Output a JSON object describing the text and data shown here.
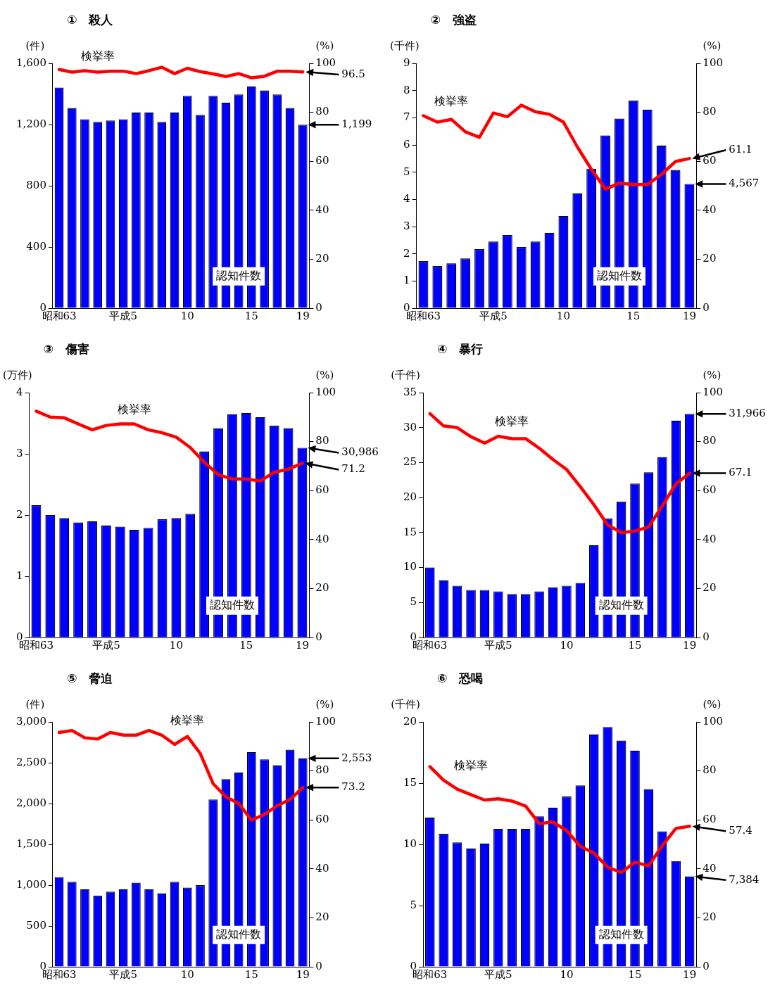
{
  "chart_data": [
    {
      "type": "bar",
      "title": "①　殺人",
      "ylabel": "(件)",
      "y2label": "(%)",
      "legend": false,
      "grid": false,
      "categories": [
        "昭和63",
        null,
        null,
        null,
        null,
        "平成5",
        null,
        null,
        null,
        null,
        "10",
        null,
        null,
        null,
        null,
        "15",
        null,
        null,
        null,
        "19"
      ],
      "ylim": [
        0,
        1600
      ],
      "yticks": [
        0,
        400,
        800,
        {
          "value": 1200,
          "label": "1,200"
        },
        {
          "value": 1600,
          "label": "1,600"
        }
      ],
      "y2lim": [
        0,
        100
      ],
      "y2ticks": [
        0,
        20,
        40,
        60,
        80,
        100
      ],
      "series": [
        {
          "name": "認知件数",
          "color": "#0000ff",
          "values": [
            1441,
            1308,
            1235,
            1217,
            1226,
            1235,
            1279,
            1279,
            1217,
            1279,
            1387,
            1263,
            1387,
            1343,
            1396,
            1449,
            1423,
            1396,
            1308,
            1199
          ]
        },
        {
          "name": "検挙率",
          "type": "line",
          "axis": "y2",
          "color": "#ff0000",
          "values": [
            97.5,
            96.4,
            97,
            96.4,
            96.8,
            96.8,
            95.8,
            97,
            98.4,
            95.8,
            98,
            96.6,
            95.7,
            94.6,
            95.8,
            94.1,
            94.7,
            96.8,
            96.8,
            96.5
          ]
        }
      ],
      "annotations": [
        "1,199",
        "96.5"
      ]
    },
    {
      "type": "bar",
      "title": "②　強盗",
      "ylabel": "(千件)",
      "y2label": "(%)",
      "legend": false,
      "grid": false,
      "categories": [
        "昭和63",
        null,
        null,
        null,
        null,
        "平成5",
        null,
        null,
        null,
        null,
        "10",
        null,
        null,
        null,
        null,
        "15",
        null,
        null,
        null,
        "19"
      ],
      "ylim": [
        0,
        9
      ],
      "yticks": [
        0,
        1,
        2,
        3,
        4,
        5,
        6,
        7,
        8,
        9
      ],
      "y2lim": [
        0,
        100
      ],
      "y2ticks": [
        0,
        20,
        40,
        60,
        80,
        100
      ],
      "series": [
        {
          "name": "認知件数",
          "color": "#0000ff",
          "values": [
            1.73,
            1.55,
            1.65,
            1.83,
            2.17,
            2.45,
            2.69,
            2.25,
            2.45,
            2.77,
            3.39,
            4.23,
            5.13,
            6.35,
            6.97,
            7.63,
            7.3,
            5.98,
            5.08,
            4.567
          ]
        },
        {
          "name": "検挙率",
          "type": "line",
          "axis": "y2",
          "color": "#ff0000",
          "values": [
            78.6,
            76,
            77.1,
            72,
            69.8,
            79.7,
            78.2,
            82.9,
            80.2,
            79.2,
            76,
            65.8,
            56.7,
            48.6,
            51.1,
            50.5,
            50.5,
            54.6,
            59.9,
            61.1
          ]
        }
      ],
      "annotations": [
        "4,567",
        "61.1"
      ]
    },
    {
      "type": "bar",
      "title": "③　傷害",
      "ylabel": "(万件)",
      "y2label": "(%)",
      "legend": false,
      "grid": false,
      "categories": [
        "昭和63",
        null,
        null,
        null,
        null,
        "平成5",
        null,
        null,
        null,
        null,
        "10",
        null,
        null,
        null,
        null,
        "15",
        null,
        null,
        null,
        "19"
      ],
      "ylim": [
        0,
        4
      ],
      "yticks": [
        0,
        1,
        2,
        3,
        4
      ],
      "y2lim": [
        0,
        100
      ],
      "y2ticks": [
        0,
        20,
        40,
        60,
        80,
        100
      ],
      "series": [
        {
          "name": "認知件数",
          "color": "#0000ff",
          "values": [
            2.16,
            2,
            1.95,
            1.88,
            1.9,
            1.83,
            1.81,
            1.76,
            1.79,
            1.93,
            1.95,
            2.02,
            3.04,
            3.42,
            3.65,
            3.67,
            3.6,
            3.46,
            3.42,
            3.0986
          ]
        },
        {
          "name": "検挙率",
          "type": "line",
          "axis": "y2",
          "color": "#ff0000",
          "values": [
            92.4,
            90,
            89.7,
            87.2,
            84.8,
            86.6,
            87.2,
            87.2,
            84.8,
            83.6,
            81.8,
            77.6,
            71.6,
            66.5,
            64.7,
            64.7,
            63.9,
            67.5,
            68.7,
            71.2
          ]
        }
      ],
      "annotations": [
        "30,986",
        "71.2"
      ]
    },
    {
      "type": "bar",
      "title": "④　暴行",
      "ylabel": "(千件)",
      "y2label": "(%)",
      "legend": false,
      "grid": false,
      "categories": [
        "昭和63",
        null,
        null,
        null,
        null,
        "平成5",
        null,
        null,
        null,
        null,
        "10",
        null,
        null,
        null,
        null,
        "15",
        null,
        null,
        null,
        "19"
      ],
      "ylim": [
        0,
        35
      ],
      "yticks": [
        0,
        5,
        10,
        15,
        20,
        25,
        30,
        35
      ],
      "y2lim": [
        0,
        100
      ],
      "y2ticks": [
        0,
        20,
        40,
        60,
        80,
        100
      ],
      "series": [
        {
          "name": "認知件数",
          "color": "#0000ff",
          "values": [
            10,
            8.2,
            7.4,
            6.8,
            6.8,
            6.6,
            6.2,
            6.2,
            6.6,
            7.2,
            7.4,
            7.8,
            13.2,
            17,
            19.4,
            22,
            23.6,
            25.8,
            31,
            31.966
          ]
        },
        {
          "name": "検挙率",
          "type": "line",
          "axis": "y2",
          "color": "#ff0000",
          "values": [
            91.4,
            86.4,
            85.7,
            82,
            79.4,
            82.2,
            81.2,
            81.2,
            77.3,
            72.7,
            68.6,
            61.6,
            54.2,
            46,
            42.8,
            43.5,
            45.1,
            53.7,
            62.7,
            67.1
          ]
        }
      ],
      "annotations": [
        "31,966",
        "67.1"
      ]
    },
    {
      "type": "bar",
      "title": "⑤　脅迫",
      "ylabel": "(件)",
      "y2label": "(%)",
      "legend": false,
      "grid": false,
      "categories": [
        "昭和63",
        null,
        null,
        null,
        null,
        "平成5",
        null,
        null,
        null,
        null,
        "10",
        null,
        null,
        null,
        null,
        "15",
        null,
        null,
        null,
        "19"
      ],
      "ylim": [
        0,
        3000
      ],
      "yticks": [
        0,
        500,
        {
          "value": 1000,
          "label": "1,000"
        },
        {
          "value": 1500,
          "label": "1,500"
        },
        {
          "value": 2000,
          "label": "2,000"
        },
        {
          "value": 2500,
          "label": "2,500"
        },
        {
          "value": 3000,
          "label": "3,000"
        }
      ],
      "y2lim": [
        0,
        100
      ],
      "y2ticks": [
        0,
        20,
        40,
        60,
        80,
        100
      ],
      "series": [
        {
          "name": "認知件数",
          "color": "#0000ff",
          "values": [
            1100,
            1040,
            950,
            870,
            920,
            950,
            1030,
            950,
            900,
            1040,
            970,
            1000,
            2050,
            2300,
            2380,
            2630,
            2540,
            2470,
            2660,
            2553
          ]
        },
        {
          "name": "検挙率",
          "type": "line",
          "axis": "y2",
          "color": "#ff0000",
          "values": [
            95.7,
            96.5,
            93.5,
            93,
            95.7,
            94.6,
            94.6,
            96.5,
            94.6,
            90.8,
            94.1,
            87.1,
            74.8,
            69.4,
            66.7,
            59.9,
            62.2,
            65.8,
            68.3,
            73.2
          ]
        }
      ],
      "annotations": [
        "2,553",
        "73.2"
      ]
    },
    {
      "type": "bar",
      "title": "⑥　恐喝",
      "ylabel": "(千件)",
      "y2label": "(%)",
      "legend": false,
      "grid": false,
      "categories": [
        "昭和63",
        null,
        null,
        null,
        null,
        "平成5",
        null,
        null,
        null,
        null,
        "10",
        null,
        null,
        null,
        null,
        "15",
        null,
        null,
        null,
        "19"
      ],
      "ylim": [
        0,
        20
      ],
      "yticks": [
        0,
        5,
        10,
        15,
        20
      ],
      "y2lim": [
        0,
        100
      ],
      "y2ticks": [
        0,
        20,
        40,
        60,
        80,
        100
      ],
      "series": [
        {
          "name": "認知件数",
          "color": "#0000ff",
          "values": [
            12.19,
            10.86,
            10.16,
            9.66,
            10.07,
            11.27,
            11.27,
            11.27,
            12.29,
            13,
            13.91,
            14.82,
            18.98,
            19.59,
            18.47,
            17.66,
            14.51,
            11.07,
            8.64,
            7.384
          ]
        },
        {
          "name": "検挙率",
          "type": "line",
          "axis": "y2",
          "color": "#ff0000",
          "values": [
            81.7,
            76.2,
            72.5,
            70.3,
            68.1,
            68.6,
            67.7,
            65.6,
            58.5,
            59.1,
            55.6,
            49.2,
            46.4,
            40.7,
            38.5,
            42.7,
            41.2,
            49.5,
            56.5,
            57.4
          ]
        }
      ],
      "annotations": [
        "7,384",
        "57.4"
      ]
    }
  ]
}
